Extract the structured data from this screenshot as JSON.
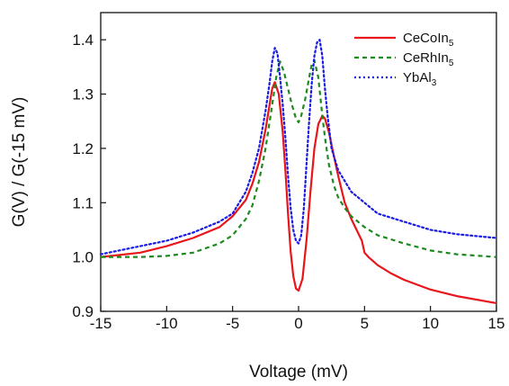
{
  "chart_data": {
    "type": "line",
    "title": "",
    "xlabel": "Voltage (mV)",
    "ylabel": "G(V) / G(-15 mV)",
    "xlim": [
      -15,
      15
    ],
    "ylim": [
      0.9,
      1.45
    ],
    "xticks": [
      -15,
      -10,
      -5,
      0,
      5,
      10,
      15
    ],
    "yticks": [
      0.9,
      1.0,
      1.1,
      1.2,
      1.3,
      1.4
    ],
    "xtick_labels": [
      "-15",
      "-10",
      "-5",
      "0",
      "5",
      "10",
      "15"
    ],
    "ytick_labels": [
      "0.9",
      "1.0",
      "1.1",
      "1.2",
      "1.3",
      "1.4"
    ],
    "grid": false,
    "legend_position": "top-right",
    "series": [
      {
        "name": "CeCoIn5",
        "label_main": "CeCoIn",
        "label_sub": "5",
        "color": "#e8151b",
        "dash": "solid",
        "x": [
          -15,
          -12,
          -10,
          -8,
          -6,
          -5,
          -4,
          -3.5,
          -3,
          -2.5,
          -2.2,
          -2,
          -1.8,
          -1.5,
          -1.2,
          -1,
          -0.8,
          -0.6,
          -0.4,
          -0.2,
          0,
          0.3,
          0.6,
          0.9,
          1.2,
          1.5,
          1.8,
          2.0,
          2.3,
          2.6,
          3,
          3.5,
          4,
          4.5,
          4.8,
          5.0,
          5.3,
          6,
          7,
          8,
          10,
          12,
          15
        ],
        "y": [
          1.0,
          1.008,
          1.02,
          1.035,
          1.055,
          1.075,
          1.105,
          1.135,
          1.175,
          1.235,
          1.28,
          1.31,
          1.322,
          1.3,
          1.23,
          1.16,
          1.08,
          1.01,
          0.965,
          0.942,
          0.938,
          0.96,
          1.03,
          1.12,
          1.2,
          1.245,
          1.26,
          1.255,
          1.23,
          1.195,
          1.15,
          1.1,
          1.07,
          1.045,
          1.03,
          1.008,
          1.0,
          0.985,
          0.97,
          0.958,
          0.94,
          0.928,
          0.915
        ]
      },
      {
        "name": "CeRhIn5",
        "label_main": "CeRhIn",
        "label_sub": "5",
        "color": "#1f8a1f",
        "dash": "dashed",
        "x": [
          -15,
          -12,
          -10,
          -8,
          -6,
          -5,
          -4,
          -3.5,
          -3,
          -2.5,
          -2,
          -1.7,
          -1.4,
          -1.1,
          -0.8,
          -0.5,
          -0.2,
          0,
          0.2,
          0.5,
          0.8,
          1.0,
          1.2,
          1.5,
          1.8,
          2.0,
          2.3,
          2.7,
          3,
          3.5,
          4,
          5,
          6,
          8,
          10,
          12,
          15
        ],
        "y": [
          1.0,
          1.0,
          1.002,
          1.008,
          1.025,
          1.04,
          1.07,
          1.095,
          1.14,
          1.2,
          1.28,
          1.33,
          1.36,
          1.34,
          1.31,
          1.28,
          1.255,
          1.248,
          1.26,
          1.29,
          1.33,
          1.355,
          1.362,
          1.33,
          1.26,
          1.22,
          1.17,
          1.13,
          1.11,
          1.09,
          1.075,
          1.055,
          1.04,
          1.025,
          1.012,
          1.005,
          1.0
        ]
      },
      {
        "name": "YbAl3",
        "label_main": "YbAl",
        "label_sub": "3",
        "color": "#1a1ae6",
        "dash": "dotted",
        "x": [
          -15,
          -12,
          -10,
          -8,
          -6,
          -5,
          -4,
          -3.5,
          -3,
          -2.5,
          -2.2,
          -2,
          -1.8,
          -1.6,
          -1.4,
          -1.2,
          -1,
          -0.8,
          -0.6,
          -0.4,
          -0.2,
          0,
          0.2,
          0.4,
          0.6,
          0.8,
          1.0,
          1.2,
          1.4,
          1.6,
          1.8,
          2.0,
          2.2,
          2.5,
          3,
          3.5,
          4,
          5,
          6,
          8,
          10,
          12,
          15
        ],
        "y": [
          1.005,
          1.02,
          1.03,
          1.045,
          1.065,
          1.08,
          1.12,
          1.155,
          1.2,
          1.27,
          1.32,
          1.36,
          1.385,
          1.375,
          1.33,
          1.28,
          1.22,
          1.15,
          1.09,
          1.05,
          1.03,
          1.025,
          1.04,
          1.09,
          1.17,
          1.25,
          1.32,
          1.37,
          1.395,
          1.4,
          1.37,
          1.31,
          1.26,
          1.2,
          1.16,
          1.14,
          1.12,
          1.1,
          1.08,
          1.065,
          1.05,
          1.042,
          1.035
        ]
      }
    ]
  }
}
